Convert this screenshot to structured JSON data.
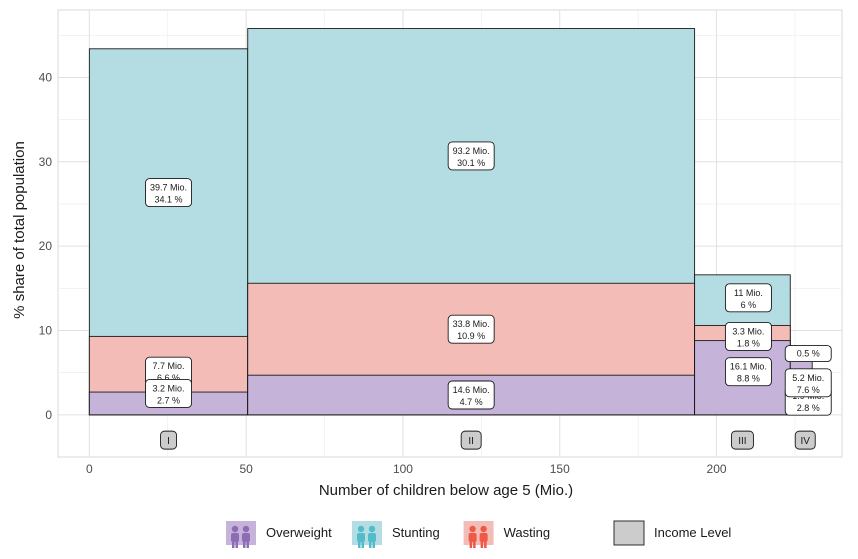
{
  "chart_data": {
    "type": "bar",
    "subtype": "variable-width stacked (mosaic)",
    "xlabel": "Number of children below age 5 (Mio.)",
    "ylabel": "% share of total population",
    "xlim": [
      -10,
      240
    ],
    "ylim": [
      -5,
      48
    ],
    "x_ticks": [
      0,
      50,
      100,
      150,
      200
    ],
    "y_ticks": [
      0,
      10,
      20,
      30,
      40
    ],
    "grid": true,
    "legend_position": "bottom",
    "colors": {
      "Overweight": "#c5b3da",
      "Stunting": "#b3dde2",
      "Wasting": "#f4bcb7",
      "Income Level": "#cccccc",
      "icon_overweight": "#8e6cb4",
      "icon_stunting": "#52bccb",
      "icon_wasting": "#ee5a45"
    },
    "groups": [
      {
        "income_level": "I",
        "x_start": 0,
        "x_end": 50.5,
        "bars": [
          {
            "indicator": "Overweight",
            "y_bottom": 0,
            "y_top": 2.7,
            "label_mio": "3.2 Mio.",
            "label_pct": "2.7 %"
          },
          {
            "indicator": "Wasting",
            "y_bottom": 0,
            "y_top": 9.3,
            "label_mio": "7.7 Mio.",
            "label_pct": "6.6 %"
          },
          {
            "indicator": "Stunting",
            "y_bottom": 0,
            "y_top": 43.4,
            "label_mio": "39.7 Mio.",
            "label_pct": "34.1 %"
          }
        ]
      },
      {
        "income_level": "II",
        "x_start": 50.5,
        "x_end": 193,
        "bars": [
          {
            "indicator": "Overweight",
            "y_bottom": 0,
            "y_top": 4.7,
            "label_mio": "14.6 Mio.",
            "label_pct": "4.7 %"
          },
          {
            "indicator": "Wasting",
            "y_bottom": 0,
            "y_top": 15.6,
            "label_mio": "33.8 Mio.",
            "label_pct": "10.9 %"
          },
          {
            "indicator": "Stunting",
            "y_bottom": 0,
            "y_top": 45.8,
            "label_mio": "93.2 Mio.",
            "label_pct": "30.1 %"
          }
        ]
      },
      {
        "income_level": "III",
        "x_start": 193,
        "x_end": 223.5,
        "bars": [
          {
            "indicator": "Overweight",
            "y_bottom": 0,
            "y_top": 8.8,
            "label_mio": "16.1 Mio.",
            "label_pct": "8.8 %"
          },
          {
            "indicator": "Wasting",
            "y_bottom": 0,
            "y_top": 10.6,
            "label_mio": "3.3 Mio.",
            "label_pct": "1.8 %"
          },
          {
            "indicator": "Stunting",
            "y_bottom": 0,
            "y_top": 16.6,
            "label_mio": "11 Mio.",
            "label_pct": "6 %"
          }
        ]
      },
      {
        "income_level": "IV",
        "x_start": 223.5,
        "x_end": 230.5,
        "bars": [
          {
            "indicator": "Overweight",
            "y_bottom": 0,
            "y_top": 7.6,
            "label_mio": "5.2 Mio.",
            "label_pct": "7.6 %"
          },
          {
            "indicator": "Wasting",
            "y_bottom": 0,
            "y_top": 0.5,
            "label_mio": "",
            "label_pct": "0.5 %"
          },
          {
            "indicator": "Stunting",
            "y_bottom": 0,
            "y_top": 2.8,
            "label_mio": "1.9 Mio.",
            "label_pct": "2.8 %"
          }
        ]
      }
    ],
    "legend": [
      {
        "name": "Overweight",
        "icon": "overweight-children-icon"
      },
      {
        "name": "Stunting",
        "icon": "stunting-children-icon"
      },
      {
        "name": "Wasting",
        "icon": "wasting-children-icon"
      },
      {
        "name": "Income Level",
        "icon": "income-level-swatch"
      }
    ]
  }
}
